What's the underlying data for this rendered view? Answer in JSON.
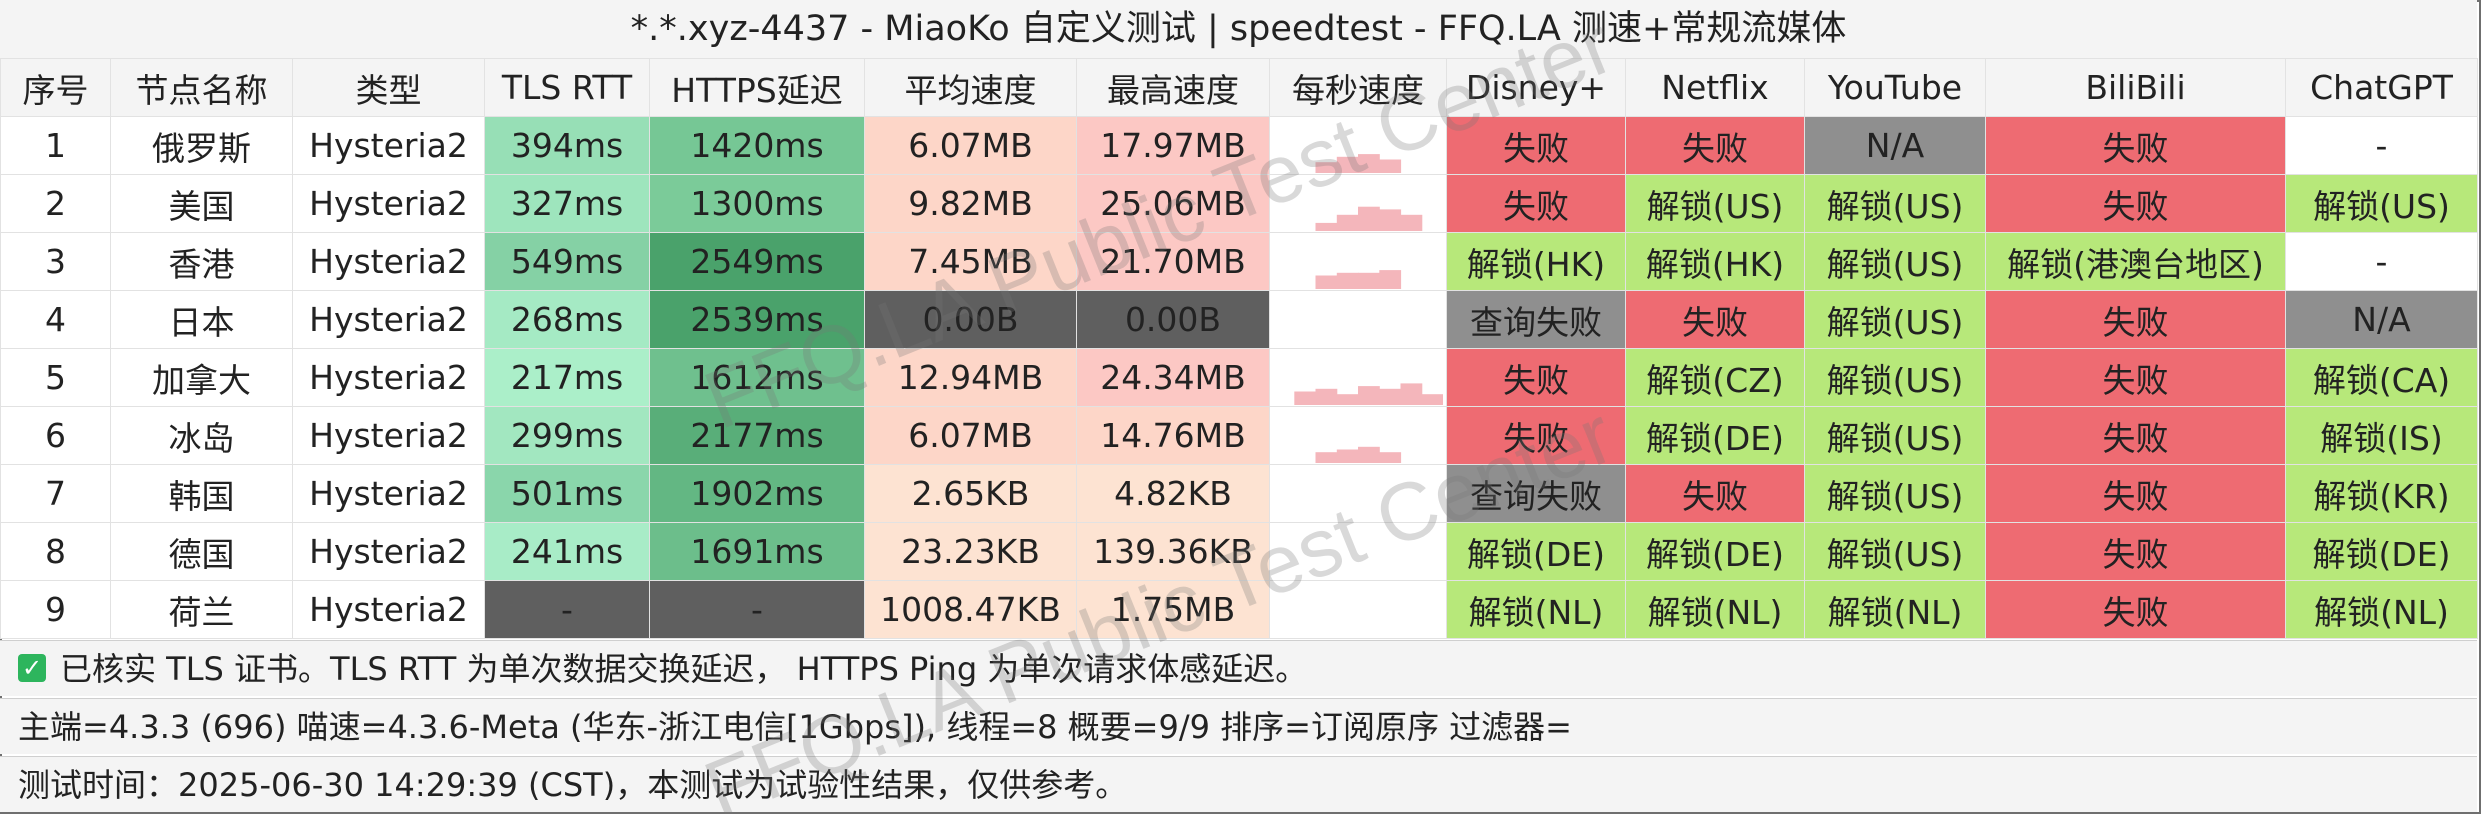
{
  "title": "*.*.xyz-4437 - MiaoKo 自定义测试 | speedtest - FFQ.LA 测速+常规流媒体",
  "watermark": "FFQ.LA Public Test Center",
  "columns": [
    "序号",
    "节点名称",
    "类型",
    "TLS RTT",
    "HTTPS延迟",
    "平均速度",
    "最高速度",
    "每秒速度",
    "Disney+",
    "Netflix",
    "YouTube",
    "BiliBili",
    "ChatGPT"
  ],
  "rows": [
    {
      "id": "1",
      "name": "俄罗斯",
      "type": "Hysteria2",
      "tls": "394ms",
      "https": "1420ms",
      "avg": "6.07MB",
      "max": "17.97MB",
      "spark": [
        0,
        0,
        0.2,
        0.3,
        0.35,
        0.25,
        0,
        0
      ],
      "disney": "失败",
      "netflix": "失败",
      "youtube": "N/A",
      "bili": "失败",
      "gpt": "-"
    },
    {
      "id": "2",
      "name": "美国",
      "type": "Hysteria2",
      "tls": "327ms",
      "https": "1300ms",
      "avg": "9.82MB",
      "max": "25.06MB",
      "spark": [
        0,
        0,
        0.15,
        0.3,
        0.45,
        0.4,
        0.3,
        0
      ],
      "disney": "失败",
      "netflix": "解锁(US)",
      "youtube": "解锁(US)",
      "bili": "失败",
      "gpt": "解锁(US)"
    },
    {
      "id": "3",
      "name": "香港",
      "type": "Hysteria2",
      "tls": "549ms",
      "https": "2549ms",
      "avg": "7.45MB",
      "max": "21.70MB",
      "spark": [
        0,
        0,
        0.25,
        0.3,
        0.3,
        0.35,
        0,
        0
      ],
      "disney": "解锁(HK)",
      "netflix": "解锁(HK)",
      "youtube": "解锁(US)",
      "bili": "解锁(港澳台地区)",
      "gpt": "-"
    },
    {
      "id": "4",
      "name": "日本",
      "type": "Hysteria2",
      "tls": "268ms",
      "https": "2539ms",
      "avg": "0.00B",
      "max": "0.00B",
      "spark": [
        0,
        0,
        0,
        0,
        0,
        0,
        0,
        0
      ],
      "disney": "查询失败",
      "netflix": "失败",
      "youtube": "解锁(US)",
      "bili": "失败",
      "gpt": "N/A"
    },
    {
      "id": "5",
      "name": "加拿大",
      "type": "Hysteria2",
      "tls": "217ms",
      "https": "1612ms",
      "avg": "12.94MB",
      "max": "24.34MB",
      "spark": [
        0,
        0.25,
        0.3,
        0.2,
        0.35,
        0.3,
        0.4,
        0.2
      ],
      "disney": "失败",
      "netflix": "解锁(CZ)",
      "youtube": "解锁(US)",
      "bili": "失败",
      "gpt": "解锁(CA)"
    },
    {
      "id": "6",
      "name": "冰岛",
      "type": "Hysteria2",
      "tls": "299ms",
      "https": "2177ms",
      "avg": "6.07MB",
      "max": "14.76MB",
      "spark": [
        0,
        0,
        0.2,
        0.25,
        0.3,
        0.2,
        0,
        0
      ],
      "disney": "失败",
      "netflix": "解锁(DE)",
      "youtube": "解锁(US)",
      "bili": "失败",
      "gpt": "解锁(IS)"
    },
    {
      "id": "7",
      "name": "韩国",
      "type": "Hysteria2",
      "tls": "501ms",
      "https": "1902ms",
      "avg": "2.65KB",
      "max": "4.82KB",
      "spark": [
        0,
        0,
        0,
        0,
        0,
        0,
        0,
        0
      ],
      "disney": "查询失败",
      "netflix": "失败",
      "youtube": "解锁(US)",
      "bili": "失败",
      "gpt": "解锁(KR)"
    },
    {
      "id": "8",
      "name": "德国",
      "type": "Hysteria2",
      "tls": "241ms",
      "https": "1691ms",
      "avg": "23.23KB",
      "max": "139.36KB",
      "spark": [
        0,
        0,
        0,
        0,
        0,
        0,
        0,
        0
      ],
      "disney": "解锁(DE)",
      "netflix": "解锁(DE)",
      "youtube": "解锁(US)",
      "bili": "失败",
      "gpt": "解锁(DE)"
    },
    {
      "id": "9",
      "name": "荷兰",
      "type": "Hysteria2",
      "tls": "-",
      "https": "-",
      "avg": "1008.47KB",
      "max": "1.75MB",
      "spark": [
        0,
        0,
        0,
        0,
        0,
        0,
        0,
        0
      ],
      "disney": "解锁(NL)",
      "netflix": "解锁(NL)",
      "youtube": "解锁(NL)",
      "bili": "失败",
      "gpt": "解锁(NL)"
    }
  ],
  "footer": {
    "tls_note": "已核实 TLS 证书。TLS RTT 为单次数据交换延迟， HTTPS Ping 为单次请求体感延迟。",
    "info": "主端=4.3.3 (696) 喵速=4.3.6-Meta (华东-浙江电信[1Gbps]), 线程=8 概要=9/9 排序=订阅原序 过滤器=",
    "time": "测试时间：2025-06-30 14:29:39 (CST)，本测试为试验性结果，仅供参考。"
  },
  "colors": {
    "fail": "#ee6b72",
    "unlock": "#b7e87a",
    "na": "#8f8f8f",
    "query_fail": "#8f8f8f",
    "missing": "#5f5f5f",
    "spark": "#f4b6bb"
  }
}
